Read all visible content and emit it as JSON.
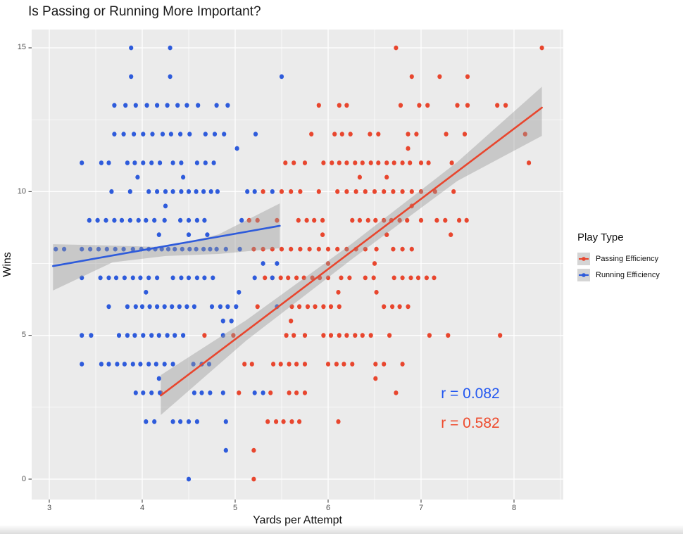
{
  "title": "Is Passing or Running More Important?",
  "axes": {
    "x": {
      "label": "Yards per Attempt",
      "ticks": [
        3,
        4,
        5,
        6,
        7,
        8
      ],
      "minor_ticks": [
        3.5,
        4.5,
        5.5,
        6.5,
        7.5,
        8.5
      ],
      "range": [
        2.81,
        8.53
      ]
    },
    "y": {
      "label": "Wins",
      "ticks": [
        0,
        5,
        10,
        15
      ],
      "minor_ticks": [
        2.5,
        7.5,
        12.5
      ],
      "range": [
        -0.71,
        15.63
      ]
    }
  },
  "legend": {
    "title": "Play Type",
    "entries": [
      {
        "label": "Passing Efficiency",
        "color": "#e8462e"
      },
      {
        "label": "Running Efficiency",
        "color": "#2e5bdb"
      }
    ]
  },
  "annotations": [
    {
      "text": "r = 0.082",
      "color": "#2257f0",
      "x": 7.53,
      "wins": 2.97
    },
    {
      "text": "r = 0.582",
      "color": "#ee4b2e",
      "x": 7.53,
      "wins": 1.94
    }
  ],
  "colors": {
    "panel_bg": "#ebebeb",
    "grid_major": "#ffffff",
    "grid_minor": "#ffffff",
    "ci_band": "rgba(153,153,153,0.42)",
    "tick_mark": "#333333",
    "tick_text": "#4d4d4d",
    "title_text": "#191919"
  },
  "chart_data": {
    "type": "scatter",
    "title": "Is Passing or Running More Important?",
    "xlabel": "Yards per Attempt",
    "ylabel": "Wins",
    "xlim": [
      2.81,
      8.53
    ],
    "ylim": [
      -0.71,
      15.63
    ],
    "grid": true,
    "legend_position": "right",
    "series": [
      {
        "name": "Passing Efficiency",
        "color": "#e8462e",
        "r": 0.582,
        "points_by_wins": {
          "15": [
            6.73,
            8.3
          ],
          "14": [
            6.9,
            7.2,
            7.5
          ],
          "13": [
            5.9,
            6.12,
            6.2,
            6.78,
            6.98,
            7.07,
            7.39,
            7.5,
            7.82,
            7.91
          ],
          "12": [
            5.82,
            6.07,
            6.15,
            6.24,
            6.45,
            6.54,
            6.86,
            6.95,
            7.27,
            7.47,
            8.12
          ],
          "11.5": [
            6.86
          ],
          "11": [
            5.54,
            5.63,
            5.75,
            5.95,
            6.04,
            6.12,
            6.2,
            6.29,
            6.37,
            6.46,
            6.54,
            6.63,
            6.71,
            6.8,
            6.88,
            7.0,
            7.08,
            7.33,
            8.16
          ],
          "10.5": [
            6.34,
            6.63
          ],
          "10": [
            5.3,
            5.5,
            5.6,
            5.7,
            5.9,
            6.1,
            6.2,
            6.3,
            6.4,
            6.5,
            6.6,
            6.7,
            6.8,
            6.9,
            7.0,
            7.15,
            7.35
          ],
          "9.5": [
            6.9
          ],
          "9": [
            5.15,
            5.24,
            5.45,
            5.68,
            5.77,
            5.85,
            5.94,
            6.26,
            6.34,
            6.43,
            6.51,
            6.6,
            6.68,
            6.77,
            6.85,
            7.0,
            7.17,
            7.26,
            7.41,
            7.49
          ],
          "8.5": [
            5.94,
            6.63,
            7.32
          ],
          "8": [
            5.2,
            5.3,
            5.4,
            5.5,
            5.6,
            5.7,
            5.8,
            5.9,
            6.0,
            6.1,
            6.2,
            6.3,
            6.4,
            6.52,
            6.7,
            6.8,
            6.9
          ],
          "7.5": [
            6.0,
            6.5
          ],
          "7": [
            5.32,
            5.4,
            5.49,
            5.57,
            5.66,
            5.74,
            5.83,
            5.91,
            6.0,
            6.14,
            6.23,
            6.4,
            6.49,
            6.71,
            6.8,
            6.89,
            6.97,
            7.06,
            7.14
          ],
          "6.5": [
            6.11,
            6.52
          ],
          "6": [
            5.24,
            5.61,
            5.69,
            5.78,
            5.86,
            5.95,
            6.03,
            6.12,
            6.6,
            6.69,
            6.77,
            6.86
          ],
          "5.5": [
            5.6
          ],
          "5": [
            4.67,
            4.98,
            5.55,
            5.63,
            5.75,
            5.95,
            6.03,
            6.12,
            6.2,
            6.29,
            6.37,
            6.46,
            6.66,
            7.09,
            7.29,
            7.85
          ],
          "4": [
            5.1,
            5.18,
            5.41,
            5.49,
            5.58,
            5.66,
            5.75,
            6.0,
            6.09,
            6.17,
            6.26,
            6.51,
            6.6,
            6.8
          ],
          "3.5": [
            6.51
          ],
          "3": [
            4.2,
            5.04,
            5.38,
            5.58,
            5.66,
            5.75,
            6.73
          ],
          "2": [
            5.35,
            5.44,
            5.52,
            5.61,
            5.69,
            6.11
          ],
          "1": [
            5.2
          ],
          "0": [
            5.2
          ]
        },
        "trend_line": {
          "x": [
            4.2,
            8.3
          ],
          "wins": [
            2.91,
            12.92
          ]
        },
        "ci_band": {
          "top": [
            [
              4.2,
              3.62
            ],
            [
              5.12,
              5.53
            ],
            [
              6.26,
              8.2
            ],
            [
              7.39,
              11.03
            ],
            [
              8.3,
              13.65
            ]
          ],
          "bottom": [
            [
              4.2,
              2.23
            ],
            [
              5.12,
              4.82
            ],
            [
              6.26,
              7.66
            ],
            [
              7.39,
              10.37
            ],
            [
              8.3,
              11.94
            ]
          ]
        }
      },
      {
        "name": "Running Efficiency",
        "color": "#2e5bdb",
        "r": 0.082,
        "points_by_wins": {
          "15": [
            3.88,
            4.3
          ],
          "14": [
            3.88,
            4.3,
            5.5
          ],
          "13": [
            3.7,
            3.82,
            3.93,
            4.05,
            4.16,
            4.27,
            4.38,
            4.48,
            4.6,
            4.8,
            4.92
          ],
          "12": [
            3.7,
            3.8,
            3.91,
            4.01,
            4.11,
            4.22,
            4.31,
            4.41,
            4.51,
            4.68,
            4.78,
            4.88,
            5.22
          ],
          "11.5": [
            5.02
          ],
          "11": [
            3.35,
            3.56,
            3.64,
            3.84,
            3.92,
            4.01,
            4.1,
            4.19,
            4.33,
            4.42,
            4.59,
            4.68,
            4.77
          ],
          "10.5": [
            3.95,
            4.44
          ],
          "10": [
            3.67,
            3.87,
            4.07,
            4.16,
            4.25,
            4.33,
            4.42,
            4.5,
            4.58,
            4.66,
            4.74,
            4.81,
            5.13,
            5.21,
            5.4
          ],
          "9.5": [
            4.25
          ],
          "9": [
            3.43,
            3.52,
            3.61,
            3.7,
            3.78,
            3.87,
            3.96,
            4.04,
            4.13,
            4.24,
            4.41,
            4.5,
            4.59,
            4.67,
            5.07
          ],
          "8.5": [
            4.18,
            4.5,
            4.7
          ],
          "8": [
            3.07,
            3.16,
            3.35,
            3.44,
            3.53,
            3.62,
            3.71,
            3.8,
            3.9,
            3.99,
            4.07,
            4.14,
            4.21,
            4.28,
            4.35,
            4.43,
            4.51,
            4.58,
            4.66,
            4.73,
            4.8,
            4.9,
            5.05
          ],
          "7.5": [
            5.3,
            5.45
          ],
          "7": [
            3.35,
            3.55,
            3.64,
            3.72,
            3.81,
            3.9,
            3.98,
            4.07,
            4.16,
            4.33,
            4.42,
            4.5,
            4.59,
            4.67,
            4.76,
            5.21,
            5.4
          ],
          "6.5": [
            4.04,
            5.04
          ],
          "6": [
            3.64,
            3.84,
            3.93,
            4.0,
            4.08,
            4.16,
            4.24,
            4.32,
            4.4,
            4.48,
            4.56,
            4.75,
            4.84,
            4.92,
            5.01,
            5.45
          ],
          "5.5": [
            4.87,
            4.96
          ],
          "5": [
            3.35,
            3.45,
            3.75,
            3.84,
            3.92,
            4.01,
            4.1,
            4.18,
            4.27,
            4.35,
            4.44,
            4.87
          ],
          "4": [
            3.35,
            3.56,
            3.64,
            3.73,
            3.81,
            3.9,
            3.98,
            4.07,
            4.15,
            4.24,
            4.33,
            4.55,
            4.64,
            4.72
          ],
          "3.5": [
            4.18
          ],
          "3": [
            3.93,
            4.01,
            4.1,
            4.19,
            4.56,
            4.64,
            4.73,
            4.87,
            5.21,
            5.3
          ],
          "2": [
            4.04,
            4.13,
            4.33,
            4.41,
            4.5,
            4.59,
            4.9
          ],
          "1": [
            4.9
          ],
          "0": [
            4.5
          ]
        },
        "trend_line": {
          "x": [
            3.04,
            5.48
          ],
          "wins": [
            7.41,
            8.81
          ]
        },
        "ci_band": {
          "top": [
            [
              3.04,
              8.17
            ],
            [
              3.61,
              8.13
            ],
            [
              4.25,
              8.07
            ],
            [
              4.82,
              8.51
            ],
            [
              5.48,
              9.59
            ]
          ],
          "bottom": [
            [
              3.04,
              6.56
            ],
            [
              3.68,
              7.54
            ],
            [
              4.25,
              7.76
            ],
            [
              4.82,
              7.83
            ],
            [
              5.48,
              8.03
            ]
          ]
        }
      }
    ]
  }
}
